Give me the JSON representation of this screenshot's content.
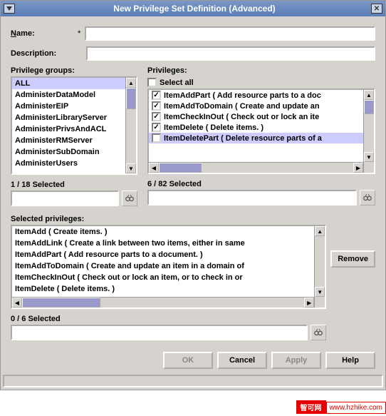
{
  "window": {
    "title": "New Privilege Set Definition (Advanced)"
  },
  "form": {
    "name_label": "Name:",
    "required": "*",
    "desc_label": "Description:",
    "name_value": "",
    "desc_value": ""
  },
  "privgroups": {
    "label": "Privilege groups:",
    "items": [
      "ALL",
      "AdministerDataModel",
      "AdministerEIP",
      "AdministerLibraryServer",
      "AdministerPrivsAndACL",
      "AdministerRMServer",
      "AdministerSubDomain",
      "AdministerUsers"
    ],
    "selected_index": 0,
    "counter": "1 / 18 Selected"
  },
  "privileges": {
    "label": "Privileges:",
    "select_all_label": "Select all",
    "select_all_checked": false,
    "items": [
      {
        "checked": true,
        "label": "ItemAddPart ( Add resource parts to a doc",
        "sel": false
      },
      {
        "checked": true,
        "label": "ItemAddToDomain ( Create and update an",
        "sel": false
      },
      {
        "checked": true,
        "label": "ItemCheckInOut ( Check out or lock an ite",
        "sel": false
      },
      {
        "checked": true,
        "label": "ItemDelete ( Delete items. )",
        "sel": false
      },
      {
        "checked": false,
        "label": "ItemDeletePart ( Delete resource parts of a",
        "sel": true
      }
    ],
    "counter": "6 / 82 Selected"
  },
  "selected": {
    "label": "Selected privileges:",
    "items": [
      "ItemAdd ( Create items. )",
      "ItemAddLink ( Create a link between two items, either in same",
      "ItemAddPart ( Add resource parts to a document. )",
      "ItemAddToDomain ( Create and update an item in a domain of",
      "ItemCheckInOut ( Check out or lock an item, or to check in or",
      "ItemDelete ( Delete items. )"
    ],
    "remove_label": "Remove",
    "counter": "0 / 6 Selected"
  },
  "buttons": {
    "ok": "OK",
    "cancel": "Cancel",
    "apply": "Apply",
    "help": "Help"
  },
  "watermark": {
    "a": "智可网",
    "b": "www.hzhike.com"
  },
  "colors": {
    "titlebar_start": "#7a98c4",
    "titlebar_end": "#5a7db8",
    "selection": "#ccccff",
    "thumb": "#9999cc",
    "panel": "#d6d3ce"
  }
}
